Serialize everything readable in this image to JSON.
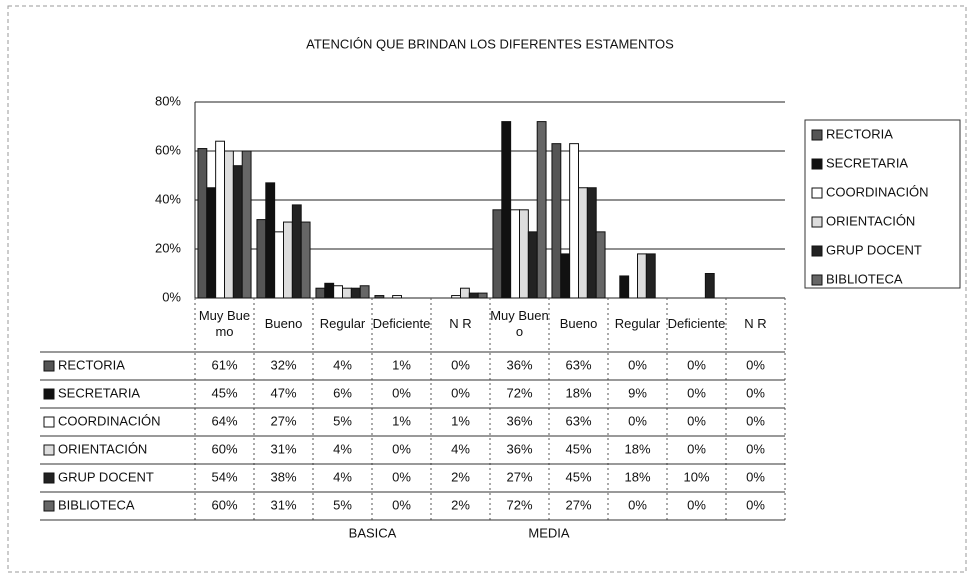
{
  "chart_data": {
    "type": "bar",
    "title": "ATENCIÓN QUE BRINDAN  LOS DIFERENTES ESTAMENTOS",
    "categories": [
      "Muy Buemo",
      "Bueno",
      "Regular",
      "Deficiente",
      "N R",
      "Muy Bueno",
      "Bueno",
      "Regular",
      "Deficiente",
      "N R"
    ],
    "groups": [
      "BASICA",
      "MEDIA"
    ],
    "ylim": [
      0,
      80
    ],
    "yticks": [
      {
        "value": 0,
        "label": "0%"
      },
      {
        "value": 20,
        "label": "20%"
      },
      {
        "value": 40,
        "label": "40%"
      },
      {
        "value": 60,
        "label": "60%"
      },
      {
        "value": 80,
        "label": "80%"
      }
    ],
    "grid": true,
    "legend": "right",
    "series": [
      {
        "name": "RECTORIA",
        "color": "#555555",
        "values": [
          61,
          32,
          4,
          1,
          0,
          36,
          63,
          0,
          0,
          0
        ],
        "value_labels": [
          "61%",
          "32%",
          "4%",
          "1%",
          "0%",
          "36%",
          "63%",
          "0%",
          "0%",
          "0%"
        ]
      },
      {
        "name": "SECRETARIA",
        "color": "#111111",
        "values": [
          45,
          47,
          6,
          0,
          0,
          72,
          18,
          9,
          0,
          0
        ],
        "value_labels": [
          "45%",
          "47%",
          "6%",
          "0%",
          "0%",
          "72%",
          "18%",
          "9%",
          "0%",
          "0%"
        ]
      },
      {
        "name": "COORDINACIÓN",
        "color": "#ffffff",
        "values": [
          64,
          27,
          5,
          1,
          1,
          36,
          63,
          0,
          0,
          0
        ],
        "value_labels": [
          "64%",
          "27%",
          "5%",
          "1%",
          "1%",
          "36%",
          "63%",
          "0%",
          "0%",
          "0%"
        ]
      },
      {
        "name": "ORIENTACIÓN",
        "color": "#dddddd",
        "values": [
          60,
          31,
          4,
          0,
          4,
          36,
          45,
          18,
          0,
          0
        ],
        "value_labels": [
          "60%",
          "31%",
          "4%",
          "0%",
          "4%",
          "36%",
          "45%",
          "18%",
          "0%",
          "0%"
        ]
      },
      {
        "name": "GRUP DOCENT",
        "color": "#222222",
        "values": [
          54,
          38,
          4,
          0,
          2,
          27,
          45,
          18,
          10,
          0
        ],
        "value_labels": [
          "54%",
          "38%",
          "4%",
          "0%",
          "2%",
          "27%",
          "45%",
          "18%",
          "10%",
          "0%"
        ]
      },
      {
        "name": "BIBLIOTECA",
        "color": "#666666",
        "values": [
          60,
          31,
          5,
          0,
          2,
          72,
          27,
          0,
          0,
          0
        ],
        "value_labels": [
          "60%",
          "31%",
          "5%",
          "0%",
          "2%",
          "72%",
          "27%",
          "0%",
          "0%",
          "0%"
        ]
      }
    ]
  }
}
